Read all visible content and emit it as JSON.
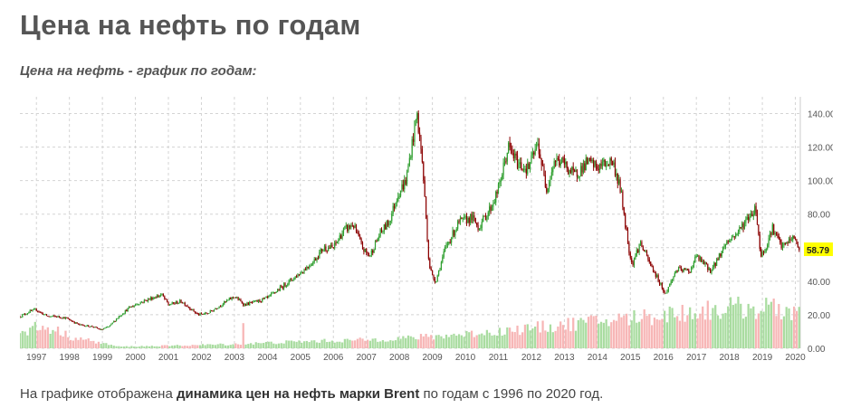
{
  "page": {
    "title": "Цена на нефть по годам",
    "subtitle": "Цена на нефть - график по годам:",
    "caption": {
      "prefix": "На графике отображена ",
      "bold": "динамика цен на нефть марки Brent",
      "suffix": " по годам с 1996 по 2020 год."
    }
  },
  "chart_data": {
    "type": "candlestick",
    "title": "",
    "xlabel": "",
    "ylabel": "",
    "x_range": [
      1996.5,
      2020.15
    ],
    "ylim": [
      0,
      150
    ],
    "y_ticks": [
      0,
      20,
      40,
      60,
      80,
      100,
      120,
      140
    ],
    "y_tick_labels": [
      "0.00",
      "20.00",
      "40.00",
      "60.00",
      "80.00",
      "100.00",
      "120.00",
      "140.00"
    ],
    "x_tick_labels": [
      "1997",
      "1998",
      "1999",
      "2000",
      "2001",
      "2002",
      "2003",
      "2004",
      "2005",
      "2006",
      "2007",
      "2008",
      "2009",
      "2010",
      "2011",
      "2012",
      "2013",
      "2014",
      "2015",
      "2016",
      "2017",
      "2018",
      "2019",
      "2020"
    ],
    "grid": true,
    "last_price": 58.79,
    "last_price_label": "58.79",
    "colors": {
      "up": "#2e9e2e",
      "down": "#8b0000",
      "volume_up": "#a9dca0",
      "volume_down": "#f7b6b6",
      "price_tag": "#ffff00",
      "grid": "#d4d4d4",
      "title": "#555555"
    },
    "price_series": [
      {
        "t": 1996.5,
        "p": 19
      },
      {
        "t": 1996.8,
        "p": 22
      },
      {
        "t": 1997.0,
        "p": 23
      },
      {
        "t": 1997.15,
        "p": 21
      },
      {
        "t": 1997.35,
        "p": 19
      },
      {
        "t": 1997.6,
        "p": 19
      },
      {
        "t": 1997.9,
        "p": 18
      },
      {
        "t": 1998.3,
        "p": 14
      },
      {
        "t": 1998.7,
        "p": 13
      },
      {
        "t": 1998.95,
        "p": 11
      },
      {
        "t": 1999.2,
        "p": 13
      },
      {
        "t": 1999.5,
        "p": 19
      },
      {
        "t": 1999.8,
        "p": 24
      },
      {
        "t": 2000.1,
        "p": 27
      },
      {
        "t": 2000.5,
        "p": 30
      },
      {
        "t": 2000.8,
        "p": 32
      },
      {
        "t": 2001.0,
        "p": 26
      },
      {
        "t": 2001.4,
        "p": 28
      },
      {
        "t": 2001.9,
        "p": 20
      },
      {
        "t": 2002.2,
        "p": 21
      },
      {
        "t": 2002.6,
        "p": 26
      },
      {
        "t": 2003.0,
        "p": 31
      },
      {
        "t": 2003.3,
        "p": 26
      },
      {
        "t": 2003.7,
        "p": 28
      },
      {
        "t": 2004.0,
        "p": 30
      },
      {
        "t": 2004.4,
        "p": 36
      },
      {
        "t": 2004.8,
        "p": 42
      },
      {
        "t": 2005.0,
        "p": 45
      },
      {
        "t": 2005.4,
        "p": 52
      },
      {
        "t": 2005.7,
        "p": 60
      },
      {
        "t": 2006.0,
        "p": 60
      },
      {
        "t": 2006.3,
        "p": 70
      },
      {
        "t": 2006.6,
        "p": 74
      },
      {
        "t": 2006.9,
        "p": 59
      },
      {
        "t": 2007.1,
        "p": 55
      },
      {
        "t": 2007.4,
        "p": 68
      },
      {
        "t": 2007.7,
        "p": 76
      },
      {
        "t": 2007.95,
        "p": 92
      },
      {
        "t": 2008.2,
        "p": 100
      },
      {
        "t": 2008.45,
        "p": 130
      },
      {
        "t": 2008.53,
        "p": 140
      },
      {
        "t": 2008.7,
        "p": 110
      },
      {
        "t": 2008.9,
        "p": 50
      },
      {
        "t": 2009.0,
        "p": 43
      },
      {
        "t": 2009.1,
        "p": 40
      },
      {
        "t": 2009.4,
        "p": 60
      },
      {
        "t": 2009.8,
        "p": 75
      },
      {
        "t": 2010.2,
        "p": 78
      },
      {
        "t": 2010.4,
        "p": 72
      },
      {
        "t": 2010.8,
        "p": 85
      },
      {
        "t": 2011.0,
        "p": 95
      },
      {
        "t": 2011.3,
        "p": 120
      },
      {
        "t": 2011.6,
        "p": 110
      },
      {
        "t": 2011.9,
        "p": 107
      },
      {
        "t": 2012.2,
        "p": 122
      },
      {
        "t": 2012.45,
        "p": 95
      },
      {
        "t": 2012.7,
        "p": 112
      },
      {
        "t": 2012.95,
        "p": 111
      },
      {
        "t": 2013.3,
        "p": 103
      },
      {
        "t": 2013.7,
        "p": 111
      },
      {
        "t": 2014.0,
        "p": 108
      },
      {
        "t": 2014.45,
        "p": 112
      },
      {
        "t": 2014.7,
        "p": 95
      },
      {
        "t": 2014.95,
        "p": 60
      },
      {
        "t": 2015.05,
        "p": 50
      },
      {
        "t": 2015.3,
        "p": 63
      },
      {
        "t": 2015.6,
        "p": 50
      },
      {
        "t": 2015.95,
        "p": 37
      },
      {
        "t": 2016.05,
        "p": 32
      },
      {
        "t": 2016.4,
        "p": 47
      },
      {
        "t": 2016.8,
        "p": 46
      },
      {
        "t": 2017.0,
        "p": 55
      },
      {
        "t": 2017.45,
        "p": 46
      },
      {
        "t": 2017.9,
        "p": 63
      },
      {
        "t": 2018.2,
        "p": 68
      },
      {
        "t": 2018.5,
        "p": 76
      },
      {
        "t": 2018.8,
        "p": 84
      },
      {
        "t": 2018.95,
        "p": 55
      },
      {
        "t": 2019.1,
        "p": 60
      },
      {
        "t": 2019.3,
        "p": 72
      },
      {
        "t": 2019.6,
        "p": 60
      },
      {
        "t": 2019.9,
        "p": 66
      },
      {
        "t": 2020.0,
        "p": 65
      },
      {
        "t": 2020.1,
        "p": 58.79
      }
    ],
    "volume_series": [
      {
        "t": 1996.5,
        "v": 8
      },
      {
        "t": 1997.0,
        "v": 13
      },
      {
        "t": 1997.6,
        "v": 11
      },
      {
        "t": 1998.0,
        "v": 7
      },
      {
        "t": 1998.5,
        "v": 5
      },
      {
        "t": 1999.0,
        "v": 3
      },
      {
        "t": 1999.5,
        "v": 1
      },
      {
        "t": 2001.0,
        "v": 1.5
      },
      {
        "t": 2003.0,
        "v": 2.5
      },
      {
        "t": 2005.0,
        "v": 4
      },
      {
        "t": 2007.0,
        "v": 5
      },
      {
        "t": 2009.0,
        "v": 7
      },
      {
        "t": 2011.0,
        "v": 10
      },
      {
        "t": 2013.0,
        "v": 14
      },
      {
        "t": 2015.0,
        "v": 18
      },
      {
        "t": 2016.0,
        "v": 20
      },
      {
        "t": 2017.0,
        "v": 22
      },
      {
        "t": 2018.0,
        "v": 24
      },
      {
        "t": 2019.0,
        "v": 24
      },
      {
        "t": 2020.1,
        "v": 22
      }
    ],
    "volume_spikes": [
      {
        "t": 2003.3,
        "v": 15
      }
    ]
  }
}
